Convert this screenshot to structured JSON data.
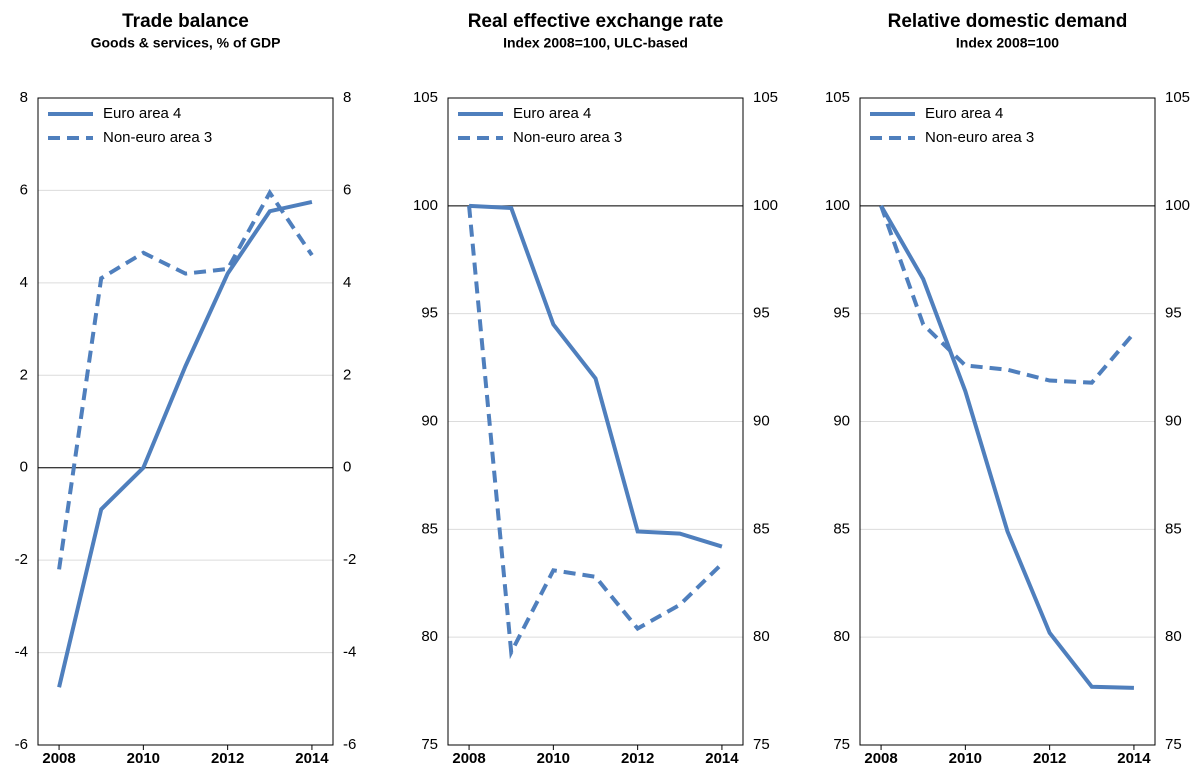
{
  "chart_data": [
    {
      "type": "line",
      "title": "Trade balance",
      "subtitle": "Goods & services, % of GDP",
      "x": [
        2008,
        2009,
        2010,
        2011,
        2012,
        2013,
        2014
      ],
      "xlim": [
        2007.5,
        2014.5
      ],
      "xticks": [
        2008,
        2010,
        2012,
        2014
      ],
      "ylim": [
        -6,
        8
      ],
      "yticks": [
        -6,
        -4,
        -2,
        0,
        2,
        4,
        6,
        8
      ],
      "y2lim": [
        -6,
        8
      ],
      "y2ticks": [
        -6,
        -4,
        -2,
        0,
        2,
        4,
        6,
        8
      ],
      "hline": 0,
      "grid": true,
      "legend": "upper left",
      "series": [
        {
          "name": "Euro area 4",
          "color": "#4f7fbd",
          "dash": false,
          "values": [
            -4.75,
            -0.9,
            0.0,
            2.2,
            4.2,
            5.55,
            5.75
          ]
        },
        {
          "name": "Non-euro area 3",
          "color": "#4f7fbd",
          "dash": true,
          "values": [
            -2.2,
            4.1,
            4.65,
            4.2,
            4.3,
            5.95,
            4.6
          ]
        }
      ]
    },
    {
      "type": "line",
      "title": "Real effective exchange rate",
      "subtitle": "Index 2008=100, ULC-based",
      "x": [
        2008,
        2009,
        2010,
        2011,
        2012,
        2013,
        2014
      ],
      "xlim": [
        2007.5,
        2014.5
      ],
      "xticks": [
        2008,
        2010,
        2012,
        2014
      ],
      "ylim": [
        75,
        105
      ],
      "yticks": [
        75,
        80,
        85,
        90,
        95,
        100,
        105
      ],
      "y2lim": [
        75,
        105
      ],
      "y2ticks": [
        75,
        80,
        85,
        90,
        95,
        100,
        105
      ],
      "hline": 100,
      "grid": true,
      "legend": "upper left",
      "series": [
        {
          "name": "Euro area 4",
          "color": "#4f7fbd",
          "dash": false,
          "values": [
            100,
            99.9,
            94.5,
            92,
            84.9,
            84.8,
            84.2
          ]
        },
        {
          "name": "Non-euro area 3",
          "color": "#4f7fbd",
          "dash": true,
          "values": [
            100,
            79.3,
            83.1,
            82.8,
            80.4,
            81.5,
            83.4
          ]
        }
      ]
    },
    {
      "type": "line",
      "title": "Relative domestic demand",
      "subtitle": "Index 2008=100",
      "x": [
        2008,
        2009,
        2010,
        2011,
        2012,
        2013,
        2014
      ],
      "xlim": [
        2007.5,
        2014.5
      ],
      "xticks": [
        2008,
        2010,
        2012,
        2014
      ],
      "ylim": [
        75,
        105
      ],
      "yticks": [
        75,
        80,
        85,
        90,
        95,
        100,
        105
      ],
      "y2lim": [
        75,
        105
      ],
      "y2ticks": [
        75,
        80,
        85,
        90,
        95,
        100,
        105
      ],
      "hline": 100,
      "grid": true,
      "legend": "upper left",
      "series": [
        {
          "name": "Euro area 4",
          "color": "#4f7fbd",
          "dash": false,
          "values": [
            100,
            96.6,
            91.4,
            84.9,
            80.2,
            77.7,
            77.65
          ]
        },
        {
          "name": "Non-euro area 3",
          "color": "#4f7fbd",
          "dash": true,
          "values": [
            100,
            94.5,
            92.6,
            92.4,
            91.9,
            91.8,
            94.1
          ]
        }
      ]
    }
  ]
}
